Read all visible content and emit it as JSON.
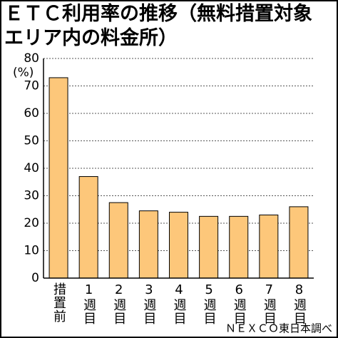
{
  "chart_data": {
    "type": "bar",
    "title": [
      "ＥＴＣ利用率の推移（無料措置対象",
      "エリア内の料金所）"
    ],
    "y_label": "(%)",
    "source": "ＮＥＸＣＯ東日本調べ",
    "categories": [
      "措置前",
      "1週目",
      "2週目",
      "3週目",
      "4週目",
      "5週目",
      "6週目",
      "7週目",
      "8週目"
    ],
    "values": [
      73,
      37,
      27.5,
      24.5,
      24,
      22.5,
      22.5,
      23,
      26
    ],
    "color": "#fdc77a",
    "ylim": [
      0,
      80
    ],
    "yticks": [
      0,
      10,
      20,
      30,
      40,
      50,
      60,
      70,
      80
    ],
    "grid": true
  }
}
